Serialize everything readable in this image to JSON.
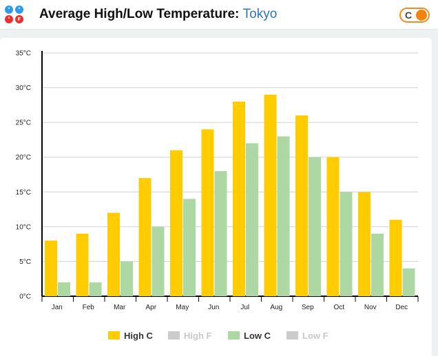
{
  "header": {
    "title_prefix": "Average High/Low Temperature: ",
    "city": "Tokyo",
    "unit_toggle_label": "C"
  },
  "units_icon": {
    "name": "unit-switch-icon",
    "colors": [
      "#2f9be8",
      "#2f9be8",
      "#e8322f",
      "#e8322f"
    ]
  },
  "colors": {
    "high_c": "#ffcc00",
    "low_c": "#add8a4",
    "inactive": "#cccccc",
    "grid": "#d0d0d0",
    "toggle_accent": "#f7820b"
  },
  "chart_data": {
    "type": "bar",
    "categories": [
      "Jan",
      "Feb",
      "Mar",
      "Apr",
      "May",
      "Jun",
      "Jul",
      "Aug",
      "Sep",
      "Oct",
      "Nov",
      "Dec"
    ],
    "series": [
      {
        "name": "High C",
        "values": [
          8,
          9,
          12,
          17,
          21,
          24,
          28,
          29,
          26,
          20,
          15,
          11
        ],
        "color": "#ffcc00"
      },
      {
        "name": "Low C",
        "values": [
          2,
          2,
          5,
          10,
          14,
          18,
          22,
          23,
          20,
          15,
          9,
          4
        ],
        "color": "#add8a4"
      }
    ],
    "y_ticks": [
      "0°C",
      "5°C",
      "10°C",
      "15°C",
      "20°C",
      "25°C",
      "30°C",
      "35°C"
    ],
    "ylim": [
      0,
      35
    ],
    "grid": true,
    "legend": {
      "placement": "bottom-center",
      "entries": [
        {
          "label": "High C",
          "active": true,
          "color": "#ffcc00"
        },
        {
          "label": "High F",
          "active": false,
          "color": "#cccccc"
        },
        {
          "label": "Low C",
          "active": true,
          "color": "#add8a4"
        },
        {
          "label": "Low F",
          "active": false,
          "color": "#cccccc"
        }
      ]
    }
  }
}
